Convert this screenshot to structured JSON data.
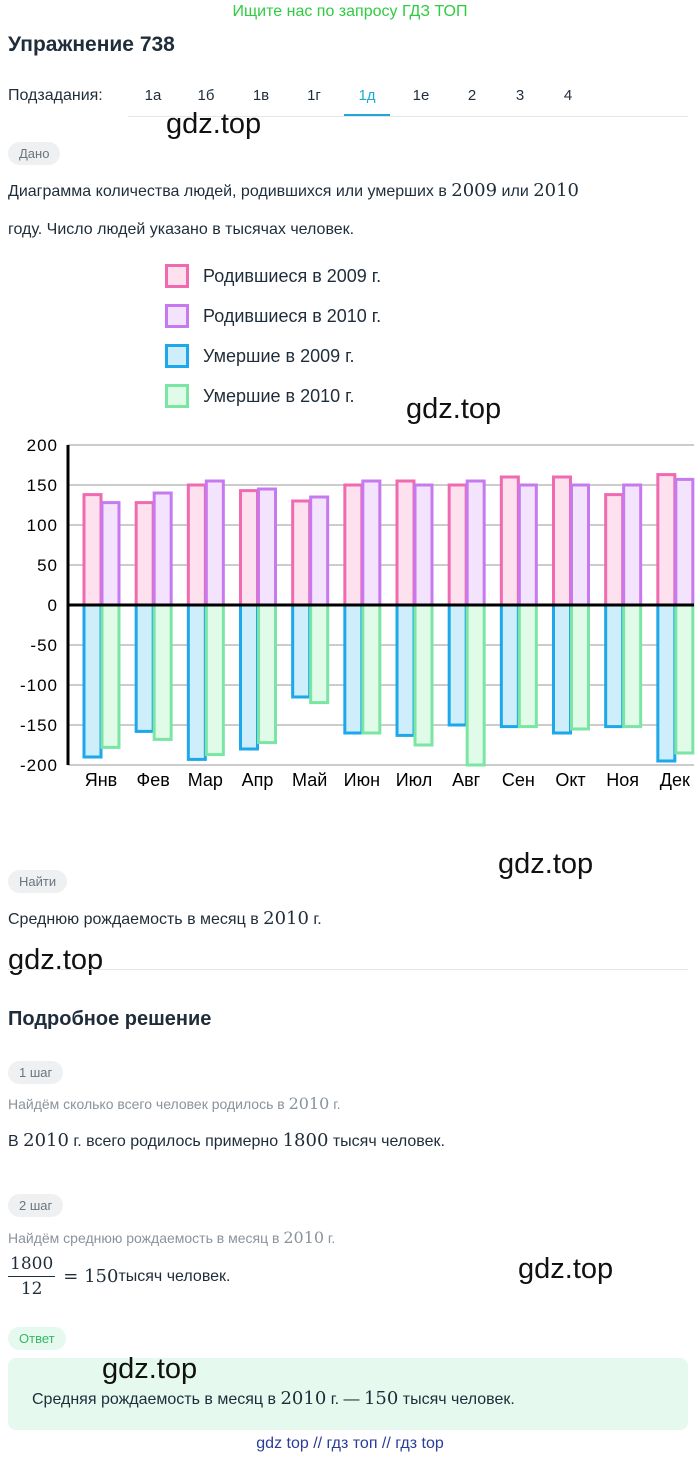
{
  "banner": "Ищите нас по запросу ГДЗ ТОП",
  "title": "Упражнение 738",
  "subtasks": {
    "label": "Подзадания:",
    "tabs": [
      "1а",
      "1б",
      "1в",
      "1г",
      "1д",
      "1е",
      "2",
      "3",
      "4"
    ],
    "active": "1д"
  },
  "watermark": "gdz.top",
  "given": {
    "badge": "Дано",
    "line1_pre": "Диаграмма количества людей, родившихся или умерших в ",
    "year1": "2009",
    "line1_mid": " или ",
    "year2": "2010",
    "line2": "году. Число людей указано в тысячах человек."
  },
  "legend": [
    {
      "label": "Родившиеся в 2009 г.",
      "color": "#f06ab0",
      "fill": "#fde1ef"
    },
    {
      "label": "Родившиеся в 2010 г.",
      "color": "#c77af0",
      "fill": "#f3e3fd"
    },
    {
      "label": "Умершие в 2009 г.",
      "color": "#1ca8ea",
      "fill": "#cdeefa"
    },
    {
      "label": "Умершие в 2010 г.",
      "color": "#7be6a4",
      "fill": "#e1fbe9"
    }
  ],
  "chart_data": {
    "type": "bar",
    "categories": [
      "Янв",
      "Фев",
      "Мар",
      "Апр",
      "Май",
      "Июн",
      "Июл",
      "Авг",
      "Сен",
      "Окт",
      "Ноя",
      "Дек"
    ],
    "series": [
      {
        "name": "Родившиеся в 2009 г.",
        "values": [
          138,
          128,
          150,
          143,
          130,
          150,
          155,
          150,
          160,
          160,
          138,
          163
        ]
      },
      {
        "name": "Родившиеся в 2010 г.",
        "values": [
          128,
          140,
          155,
          145,
          135,
          155,
          150,
          155,
          150,
          150,
          150,
          157
        ]
      },
      {
        "name": "Умершие в 2009 г.",
        "values": [
          -190,
          -158,
          -193,
          -180,
          -115,
          -160,
          -163,
          -150,
          -152,
          -160,
          -152,
          -195
        ]
      },
      {
        "name": "Умершие в 2010 г.",
        "values": [
          -178,
          -168,
          -187,
          -172,
          -122,
          -160,
          -175,
          -200,
          -152,
          -155,
          -152,
          -185
        ]
      }
    ],
    "yticks": [
      "200",
      "150",
      "100",
      "50",
      "0",
      "-50",
      "-100",
      "-150",
      "-200"
    ],
    "ylim": [
      -200,
      200
    ],
    "grid": true
  },
  "find": {
    "badge": "Найти",
    "text_pre": "Среднюю рождаемость в месяц в ",
    "year": "2010",
    "text_post": " г."
  },
  "solution": {
    "title": "Подробное решение",
    "step1": {
      "badge": "1 шаг",
      "hint_pre": "Найдём сколько всего человек родилось в ",
      "hint_year": "2010",
      "hint_post": " г.",
      "text_pre": "В ",
      "text_year": "2010",
      "text_mid": " г. всего родилось примерно ",
      "text_num": "1800",
      "text_post": " тысяч человек."
    },
    "step2": {
      "badge": "2 шаг",
      "hint_pre": "Найдём среднюю рождаемость в месяц в ",
      "hint_year": "2010",
      "hint_post": " г.",
      "frac_num": "1800",
      "frac_den": "12",
      "eq": "= 150",
      "text_post": " тысяч человек."
    }
  },
  "answer": {
    "badge": "Ответ",
    "text_pre": "Средняя рождаемость в месяц в ",
    "year": "2010",
    "text_mid": " г. — ",
    "value": "150",
    "text_post": " тысяч человек."
  },
  "footer": "gdz top  //  гдз топ  //  гдз top"
}
